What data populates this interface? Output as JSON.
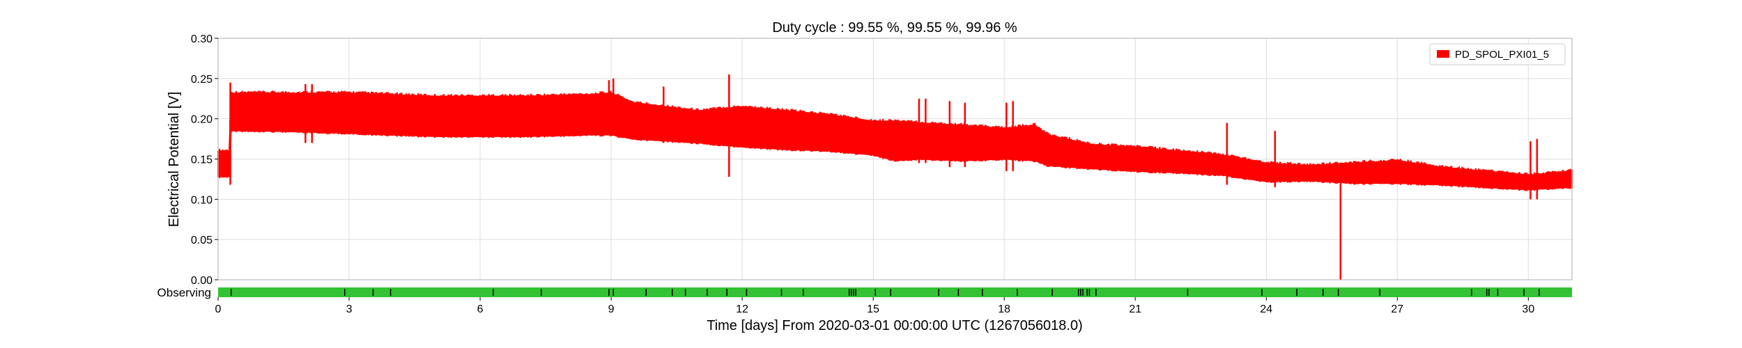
{
  "chart_data": {
    "type": "line",
    "title": "Duty cycle : 99.55 %, 99.55 %, 99.96 %",
    "ylabel": "Electrical Potential [V]",
    "xlabel": "Time [days] From 2020-03-01 00:00:00 UTC (1267056018.0)",
    "xlim": [
      0,
      31
    ],
    "ylim": [
      0,
      0.3
    ],
    "x_ticks": [
      0,
      3,
      6,
      9,
      12,
      15,
      18,
      21,
      24,
      27,
      30
    ],
    "x_tick_labels": [
      "0",
      "3",
      "6",
      "9",
      "12",
      "15",
      "18",
      "21",
      "24",
      "27",
      "30"
    ],
    "y_ticks": [
      0,
      0.05,
      0.1,
      0.15,
      0.2,
      0.25,
      0.3
    ],
    "y_tick_labels": [
      "0.00",
      "0.05",
      "0.10",
      "0.15",
      "0.20",
      "0.25",
      "0.30"
    ],
    "grid": true,
    "legend_position": "top-right",
    "series": [
      {
        "name": "PD_SPOL_PXI01_5",
        "color": "#ff0000",
        "envelope": {
          "x": [
            0,
            0.25,
            0.3,
            1,
            3,
            5,
            7,
            8.5,
            9,
            9.5,
            11,
            12,
            13,
            14,
            15,
            15.5,
            16,
            17,
            18,
            18.7,
            19,
            20,
            21,
            22,
            23,
            24,
            25,
            26,
            27,
            28,
            29,
            30,
            31
          ],
          "upper": [
            0.16,
            0.16,
            0.232,
            0.232,
            0.232,
            0.228,
            0.228,
            0.23,
            0.232,
            0.22,
            0.21,
            0.215,
            0.21,
            0.205,
            0.197,
            0.197,
            0.195,
            0.192,
            0.188,
            0.192,
            0.18,
            0.168,
            0.165,
            0.16,
            0.155,
            0.145,
            0.142,
            0.145,
            0.148,
            0.14,
            0.135,
            0.13,
            0.135
          ],
          "lower": [
            0.128,
            0.128,
            0.185,
            0.185,
            0.182,
            0.178,
            0.178,
            0.18,
            0.18,
            0.175,
            0.17,
            0.165,
            0.162,
            0.16,
            0.155,
            0.148,
            0.15,
            0.148,
            0.15,
            0.148,
            0.142,
            0.138,
            0.135,
            0.133,
            0.13,
            0.122,
            0.123,
            0.12,
            0.12,
            0.118,
            0.115,
            0.112,
            0.115
          ]
        },
        "spikes": [
          {
            "x": 0.28,
            "low": 0.118,
            "high": 0.245
          },
          {
            "x": 2.0,
            "low": 0.17,
            "high": 0.243
          },
          {
            "x": 2.15,
            "low": 0.17,
            "high": 0.243
          },
          {
            "x": 8.95,
            "low": 0.2,
            "high": 0.248
          },
          {
            "x": 9.05,
            "low": 0.2,
            "high": 0.25
          },
          {
            "x": 10.2,
            "low": 0.17,
            "high": 0.24
          },
          {
            "x": 11.7,
            "low": 0.128,
            "high": 0.255
          },
          {
            "x": 16.05,
            "low": 0.145,
            "high": 0.225
          },
          {
            "x": 16.2,
            "low": 0.145,
            "high": 0.225
          },
          {
            "x": 16.75,
            "low": 0.14,
            "high": 0.222
          },
          {
            "x": 17.1,
            "low": 0.14,
            "high": 0.22
          },
          {
            "x": 18.05,
            "low": 0.135,
            "high": 0.22
          },
          {
            "x": 18.2,
            "low": 0.135,
            "high": 0.222
          },
          {
            "x": 23.1,
            "low": 0.118,
            "high": 0.195
          },
          {
            "x": 24.2,
            "low": 0.115,
            "high": 0.185
          },
          {
            "x": 25.7,
            "low": 0.0,
            "high": 0.14
          },
          {
            "x": 30.05,
            "low": 0.1,
            "high": 0.172
          },
          {
            "x": 30.2,
            "low": 0.1,
            "high": 0.175
          }
        ]
      }
    ],
    "observing": {
      "label": "Observing",
      "color": "#33c233",
      "gap_color": "#000000",
      "gaps": [
        0.3,
        2.9,
        3.55,
        3.95,
        6.3,
        7.4,
        8.95,
        9.05,
        9.8,
        10.4,
        10.7,
        11.2,
        11.65,
        12.1,
        12.9,
        13.4,
        14.45,
        14.5,
        14.55,
        14.6,
        15.05,
        15.4,
        16.5,
        16.95,
        17.5,
        18.3,
        19.1,
        19.7,
        19.75,
        19.8,
        19.9,
        19.95,
        20.1,
        22.2,
        23.9,
        24.7,
        25.3,
        25.65,
        26.6,
        28.7,
        29.05,
        29.1,
        29.3,
        29.9,
        30.25
      ]
    }
  }
}
